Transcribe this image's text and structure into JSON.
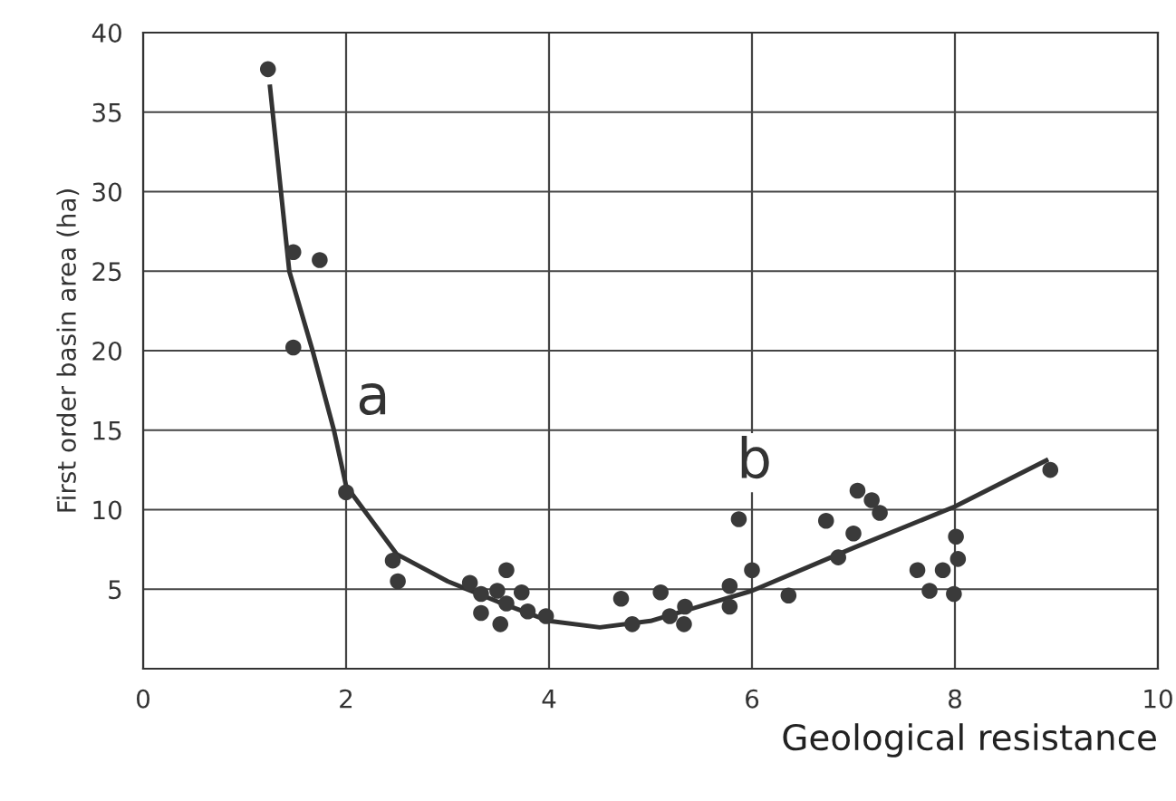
{
  "chart_data": {
    "type": "scatter",
    "xlabel": "Geological resistance",
    "ylabel": "First order basin area (ha)",
    "xlim": [
      0,
      10
    ],
    "ylim": [
      0,
      40
    ],
    "xticks": [
      0,
      2,
      4,
      6,
      8,
      10
    ],
    "yticks": [
      5,
      10,
      15,
      20,
      25,
      30,
      35,
      40
    ],
    "grid": true,
    "series": [
      {
        "color": "#3a3a3a",
        "marker": "circle",
        "x": [
          1.23,
          1.48,
          1.74,
          1.48,
          2.0,
          2.46,
          2.51,
          3.22,
          3.33,
          3.58,
          3.49,
          3.73,
          3.33,
          3.52,
          3.58,
          3.79,
          3.97,
          4.71,
          4.82,
          5.1,
          5.19,
          5.34,
          5.33,
          5.87,
          5.78,
          5.78,
          6.0,
          6.36,
          6.73,
          6.85,
          7.0,
          7.04,
          7.18,
          7.26,
          7.63,
          7.75,
          7.88,
          8.01,
          8.03,
          7.99,
          8.94
        ],
        "values": [
          37.7,
          26.2,
          25.7,
          20.2,
          11.1,
          6.8,
          5.5,
          5.4,
          4.7,
          6.2,
          4.9,
          4.8,
          3.5,
          2.8,
          4.1,
          3.6,
          3.3,
          4.4,
          2.8,
          4.8,
          3.3,
          3.9,
          2.8,
          9.4,
          5.2,
          3.9,
          6.2,
          4.6,
          9.3,
          7.0,
          8.5,
          11.2,
          10.6,
          9.8,
          6.2,
          4.9,
          6.2,
          8.3,
          6.9,
          4.7,
          12.5
        ]
      },
      {
        "type": "line",
        "color": "#333333",
        "x": [
          1.25,
          1.44,
          1.67,
          1.88,
          2.0,
          2.5,
          3.0,
          3.5,
          4.0,
          4.5,
          5.0,
          6.0,
          7.0,
          8.0,
          8.9
        ],
        "values": [
          36.6,
          25,
          20,
          15,
          11.5,
          7.2,
          5.5,
          4.2,
          3.0,
          2.6,
          3.0,
          4.9,
          7.6,
          10.2,
          13.1
        ]
      }
    ],
    "annotations": [
      "a",
      "b"
    ]
  }
}
